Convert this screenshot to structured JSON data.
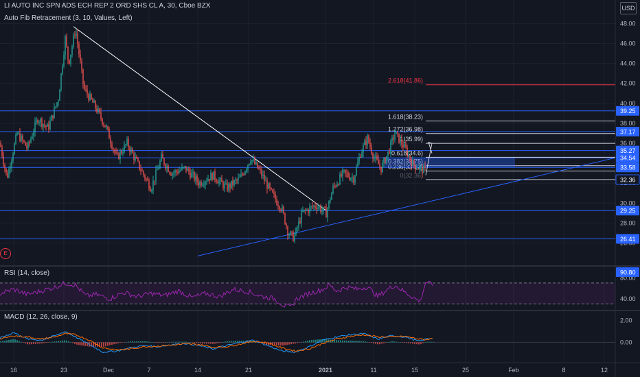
{
  "header": {
    "title": "LI AUTO INC SPN ADS ECH REP 2 ORD SHS CL A, 30, Cboe BZX",
    "indicator": "Auto Fib Retracement (3, 10, Values, Left)",
    "currency": "USD",
    "events_badge": "E"
  },
  "colors": {
    "background": "#131722",
    "grid": "#1e222d",
    "candle_up": "#26a69a",
    "candle_down": "#ef5350",
    "hline": "#2962ff",
    "fib_red": "#f23645",
    "rsi": "#9c27b0",
    "macd": "#2196f3",
    "signal": "#ff6d00",
    "price_badge_blue": "#2962ff"
  },
  "chart_data": {
    "type": "candlestick",
    "symbol": "LI",
    "interval": "30",
    "x_ticks": [
      "16",
      "23",
      "Dec",
      "7",
      "14",
      "21",
      "2021",
      "11",
      "15",
      "25",
      "Feb",
      "8",
      "12"
    ],
    "y_ticks": [
      "48.00",
      "46.00",
      "44.00",
      "42.00",
      "40.00",
      "38.00",
      "36.00",
      "34.00",
      "32.00",
      "30.00",
      "28.00",
      "26.00"
    ],
    "ylim": [
      24.6,
      49.4
    ],
    "price_path": [
      [
        0,
        36.0
      ],
      [
        10,
        32.5
      ],
      [
        25,
        37.0
      ],
      [
        40,
        35.5
      ],
      [
        55,
        38.5
      ],
      [
        70,
        37.5
      ],
      [
        85,
        40.5
      ],
      [
        95,
        46.5
      ],
      [
        100,
        44.0
      ],
      [
        110,
        47.5
      ],
      [
        122,
        41.5
      ],
      [
        140,
        39.5
      ],
      [
        155,
        37.5
      ],
      [
        170,
        34.5
      ],
      [
        185,
        36.0
      ],
      [
        200,
        34.0
      ],
      [
        220,
        31.5
      ],
      [
        235,
        34.5
      ],
      [
        250,
        33.0
      ],
      [
        270,
        33.5
      ],
      [
        290,
        32.0
      ],
      [
        310,
        32.8
      ],
      [
        330,
        31.5
      ],
      [
        350,
        32.5
      ],
      [
        365,
        34.5
      ],
      [
        380,
        33.0
      ],
      [
        395,
        31.0
      ],
      [
        410,
        29.5
      ],
      [
        420,
        27.0
      ],
      [
        428,
        26.5
      ],
      [
        440,
        29.0
      ],
      [
        460,
        29.8
      ],
      [
        475,
        29.0
      ],
      [
        485,
        31.5
      ],
      [
        500,
        33.0
      ],
      [
        515,
        32.5
      ],
      [
        525,
        35.0
      ],
      [
        535,
        36.5
      ],
      [
        545,
        34.5
      ],
      [
        555,
        33.5
      ],
      [
        565,
        35.0
      ],
      [
        575,
        37.0
      ],
      [
        590,
        35.5
      ],
      [
        600,
        34.0
      ],
      [
        610,
        33.5
      ],
      [
        620,
        33.2
      ]
    ],
    "horizontal_levels": [
      39.25,
      37.17,
      35.27,
      34.54,
      33.58,
      29.25,
      26.41
    ],
    "fib_levels": [
      {
        "label": "2.618(41.86)",
        "value": 41.86
      },
      {
        "label": "1.618(38.23)",
        "value": 38.23
      },
      {
        "label": "1.272(36.98)",
        "value": 36.98
      },
      {
        "label": "1(35.99)",
        "value": 35.99
      },
      {
        "label": "0.618(34.6)",
        "value": 34.6
      },
      {
        "label": "0.382(33.75)",
        "value": 33.75
      },
      {
        "label": "0.236(33.22)",
        "value": 33.22
      },
      {
        "label": "0(32.36)",
        "value": 32.36
      }
    ],
    "trendlines": [
      {
        "name": "downtrend",
        "from": {
          "idx": 107,
          "price": 47.7
        },
        "to": {
          "idx": 474,
          "price": 29.3
        }
      },
      {
        "name": "uptrend",
        "from": {
          "idx": 288,
          "price": 24.7
        },
        "to": {
          "idx": 896,
          "price": 34.54
        }
      }
    ],
    "price_badges": [
      "39.25",
      "37.17",
      "35.27",
      "34.54",
      "33.58",
      "32.36",
      "29.25",
      "26.41"
    ],
    "rsi": {
      "label": "RSI (14, close)",
      "value": "90.80",
      "ticks": [
        "80.00",
        "40.00"
      ],
      "ylim": [
        20,
        100
      ],
      "upper": 70,
      "lower": 30,
      "path": [
        [
          0,
          50
        ],
        [
          20,
          58
        ],
        [
          40,
          48
        ],
        [
          60,
          55
        ],
        [
          80,
          62
        ],
        [
          95,
          70
        ],
        [
          110,
          66
        ],
        [
          125,
          45
        ],
        [
          140,
          48
        ],
        [
          160,
          40
        ],
        [
          180,
          52
        ],
        [
          200,
          44
        ],
        [
          220,
          50
        ],
        [
          240,
          46
        ],
        [
          260,
          55
        ],
        [
          280,
          42
        ],
        [
          300,
          50
        ],
        [
          320,
          44
        ],
        [
          340,
          58
        ],
        [
          360,
          54
        ],
        [
          380,
          45
        ],
        [
          400,
          40
        ],
        [
          415,
          25
        ],
        [
          425,
          24
        ],
        [
          430,
          38
        ],
        [
          450,
          50
        ],
        [
          470,
          58
        ],
        [
          480,
          66
        ],
        [
          490,
          55
        ],
        [
          505,
          62
        ],
        [
          520,
          58
        ],
        [
          535,
          63
        ],
        [
          550,
          44
        ],
        [
          565,
          58
        ],
        [
          575,
          66
        ],
        [
          590,
          52
        ],
        [
          605,
          40
        ],
        [
          612,
          35
        ],
        [
          620,
          72
        ],
        [
          630,
          66
        ]
      ]
    },
    "macd": {
      "label": "MACD (12, 26, close, 9)",
      "ticks": [
        "2.00",
        "0.00"
      ],
      "ylim": [
        -1.8,
        2.8
      ],
      "macd_path": [
        [
          0,
          0.4
        ],
        [
          20,
          0.9
        ],
        [
          40,
          0.3
        ],
        [
          60,
          0.2
        ],
        [
          80,
          0.6
        ],
        [
          95,
          1.0
        ],
        [
          110,
          0.5
        ],
        [
          130,
          -0.2
        ],
        [
          150,
          -0.9
        ],
        [
          170,
          -0.8
        ],
        [
          190,
          -0.5
        ],
        [
          210,
          -0.3
        ],
        [
          230,
          -0.4
        ],
        [
          250,
          -0.2
        ],
        [
          270,
          -0.1
        ],
        [
          290,
          -0.3
        ],
        [
          310,
          -0.6
        ],
        [
          330,
          -0.3
        ],
        [
          350,
          0.0
        ],
        [
          370,
          0.2
        ],
        [
          390,
          -0.3
        ],
        [
          410,
          -0.8
        ],
        [
          430,
          -0.9
        ],
        [
          450,
          -0.4
        ],
        [
          470,
          0.2
        ],
        [
          490,
          0.5
        ],
        [
          510,
          0.7
        ],
        [
          530,
          0.8
        ],
        [
          550,
          0.3
        ],
        [
          570,
          0.6
        ],
        [
          590,
          0.5
        ],
        [
          610,
          0.1
        ],
        [
          620,
          0.3
        ],
        [
          630,
          0.4
        ]
      ],
      "signal_path": [
        [
          0,
          0.3
        ],
        [
          20,
          0.6
        ],
        [
          40,
          0.5
        ],
        [
          60,
          0.3
        ],
        [
          80,
          0.5
        ],
        [
          95,
          0.8
        ],
        [
          110,
          0.7
        ],
        [
          130,
          0.2
        ],
        [
          150,
          -0.5
        ],
        [
          170,
          -0.7
        ],
        [
          190,
          -0.6
        ],
        [
          210,
          -0.4
        ],
        [
          230,
          -0.35
        ],
        [
          250,
          -0.25
        ],
        [
          270,
          -0.15
        ],
        [
          290,
          -0.2
        ],
        [
          310,
          -0.45
        ],
        [
          330,
          -0.4
        ],
        [
          350,
          -0.15
        ],
        [
          370,
          0.1
        ],
        [
          390,
          -0.05
        ],
        [
          410,
          -0.5
        ],
        [
          430,
          -0.8
        ],
        [
          450,
          -0.6
        ],
        [
          470,
          -0.1
        ],
        [
          490,
          0.3
        ],
        [
          510,
          0.55
        ],
        [
          530,
          0.7
        ],
        [
          550,
          0.5
        ],
        [
          570,
          0.5
        ],
        [
          590,
          0.55
        ],
        [
          610,
          0.3
        ],
        [
          620,
          0.25
        ],
        [
          630,
          0.35
        ]
      ]
    }
  }
}
